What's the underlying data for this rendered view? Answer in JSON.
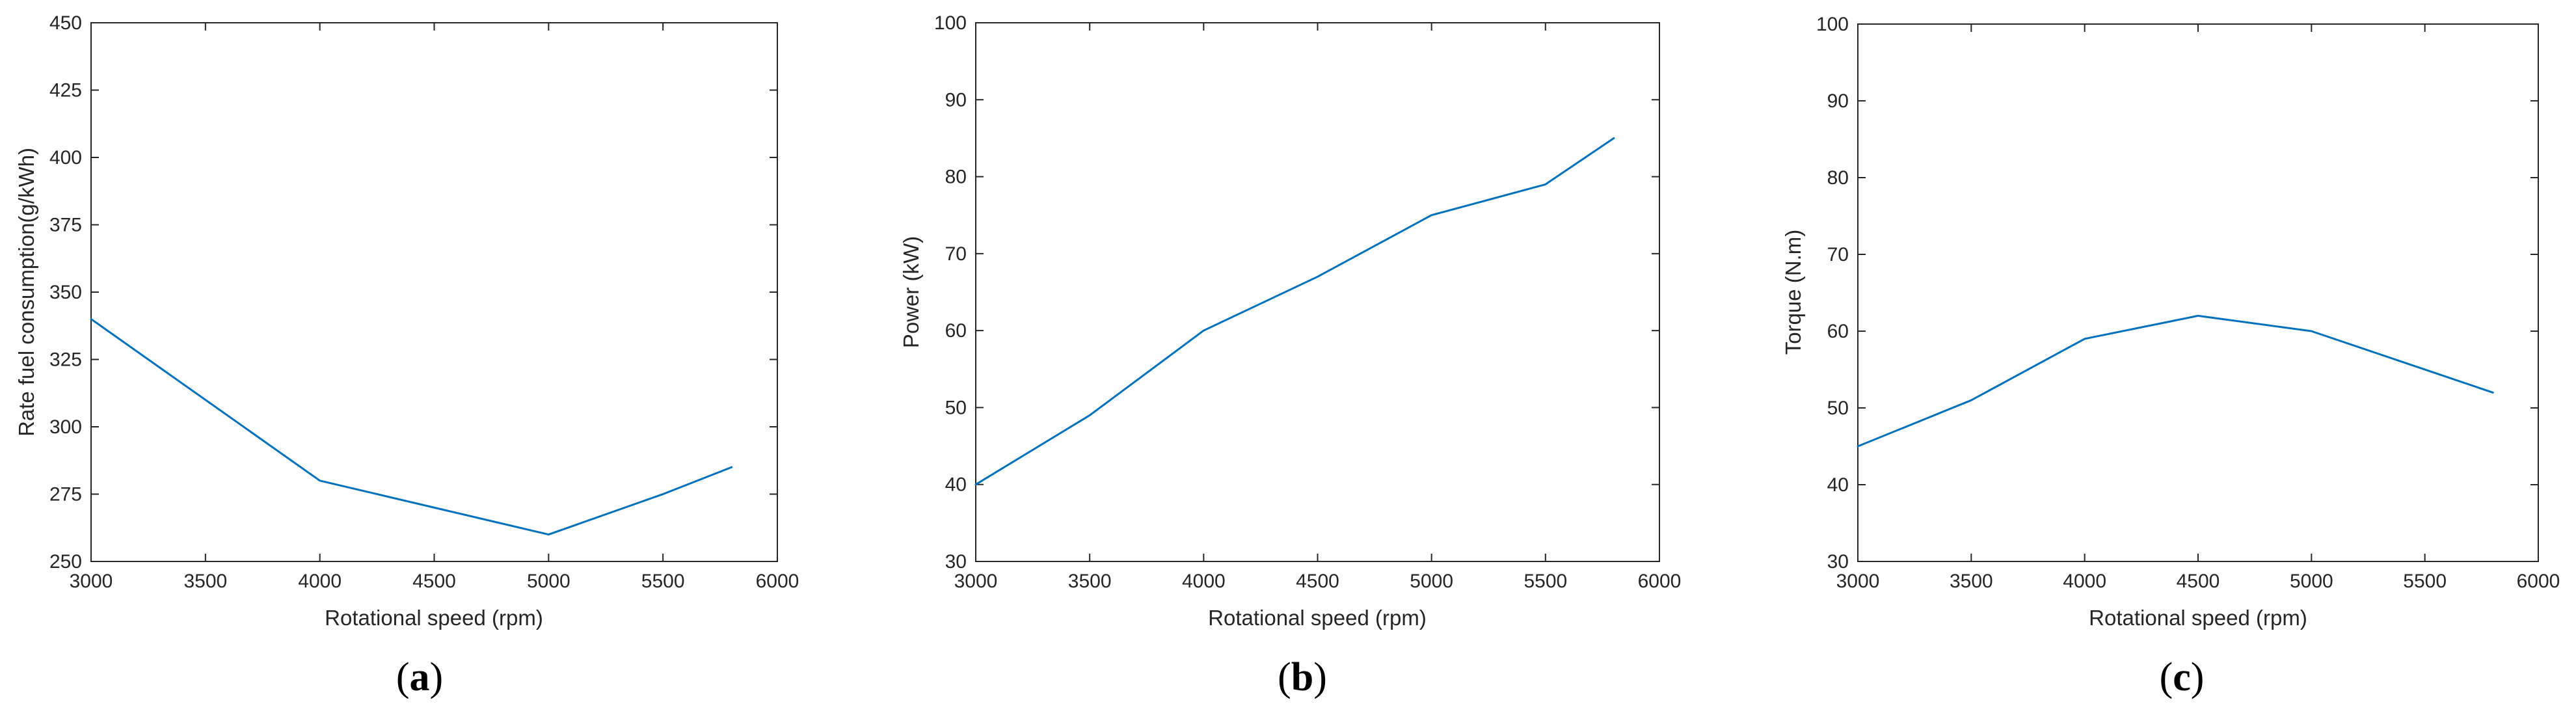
{
  "colors": {
    "series": "#0072BD",
    "axis": "#262626"
  },
  "chart_data": [
    {
      "type": "line",
      "panel": "a",
      "xlabel": "Rotational speed (rpm)",
      "ylabel": "Rate fuel consumption(g/kWh)",
      "xlim": [
        3000,
        6000
      ],
      "ylim": [
        250,
        450
      ],
      "xticks": [
        3000,
        3500,
        4000,
        4500,
        5000,
        5500,
        6000
      ],
      "yticks": [
        250,
        275,
        300,
        325,
        350,
        375,
        400,
        425,
        450
      ],
      "grid": false,
      "series": [
        {
          "x": [
            3000,
            4000,
            5000,
            5500,
            5800
          ],
          "y": [
            340,
            280,
            260,
            275,
            285
          ]
        }
      ]
    },
    {
      "type": "line",
      "panel": "b",
      "xlabel": "Rotational speed (rpm)",
      "ylabel": "Power (kW)",
      "xlim": [
        3000,
        6000
      ],
      "ylim": [
        30,
        100
      ],
      "xticks": [
        3000,
        3500,
        4000,
        4500,
        5000,
        5500,
        6000
      ],
      "yticks": [
        30,
        40,
        50,
        60,
        70,
        80,
        90,
        100
      ],
      "grid": false,
      "series": [
        {
          "x": [
            3000,
            3500,
            4000,
            4500,
            5000,
            5500,
            5800
          ],
          "y": [
            40,
            49,
            60,
            67,
            75,
            79,
            85
          ]
        }
      ]
    },
    {
      "type": "line",
      "panel": "c",
      "xlabel": "Rotational speed (rpm)",
      "ylabel": "Torque (N.m)",
      "xlim": [
        3000,
        6000
      ],
      "ylim": [
        30,
        100
      ],
      "xticks": [
        3000,
        3500,
        4000,
        4500,
        5000,
        5500,
        6000
      ],
      "yticks": [
        30,
        40,
        50,
        60,
        70,
        80,
        90,
        100
      ],
      "grid": false,
      "series": [
        {
          "x": [
            3000,
            3500,
            4000,
            4500,
            5000,
            5800
          ],
          "y": [
            45,
            51,
            59,
            62,
            60,
            52
          ]
        }
      ]
    }
  ]
}
